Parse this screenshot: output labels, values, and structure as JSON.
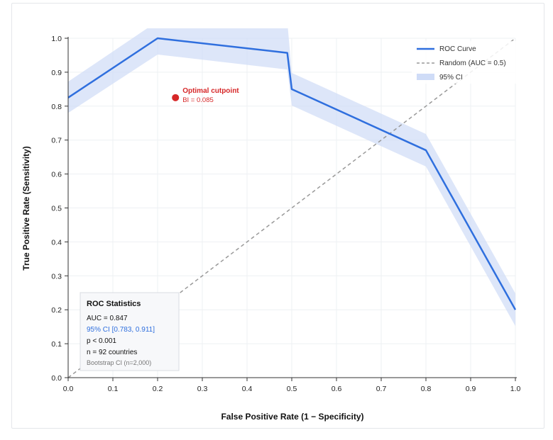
{
  "chart_data": {
    "type": "line",
    "xlabel": "False Positive Rate (1 − Specificity)",
    "ylabel": "True Positive Rate (Sensitivity)",
    "xlim": [
      0,
      1
    ],
    "ylim": [
      0,
      1
    ],
    "xticks": [
      "0.0",
      "0.1",
      "0.2",
      "0.3",
      "0.4",
      "0.5",
      "0.6",
      "0.7",
      "0.8",
      "0.9",
      "1.0"
    ],
    "yticks": [
      "0.0",
      "0.1",
      "0.2",
      "0.3",
      "0.4",
      "0.5",
      "0.6",
      "0.7",
      "0.8",
      "0.9",
      "1.0"
    ],
    "grid": true,
    "legend_position": "top-right",
    "series": [
      {
        "name": "ROC Curve",
        "color": "#2f6fde",
        "x": [
          0.0,
          0.2,
          0.49,
          0.5,
          0.8,
          1.0
        ],
        "y": [
          0.825,
          1.0,
          0.957,
          0.85,
          0.67,
          0.2
        ]
      },
      {
        "name": "Random (AUC = 0.5)",
        "color": "#999999",
        "style": "dashed",
        "x": [
          0.0,
          1.0
        ],
        "y": [
          0.0,
          1.0
        ]
      }
    ],
    "ci_band": {
      "name": "95% CI",
      "color": "#cfdcf7",
      "x": [
        0.0,
        0.2,
        0.49,
        0.5,
        0.8,
        1.0
      ],
      "lower": [
        0.78,
        0.952,
        0.908,
        0.802,
        0.622,
        0.152
      ],
      "upper": [
        0.872,
        1.05,
        1.05,
        0.898,
        0.718,
        0.248
      ]
    },
    "optimal_point": {
      "x": 0.24,
      "y": 0.825,
      "color": "#d62728",
      "label": "Optimal cutpoint",
      "sublabel": "BI = 0.085"
    },
    "stats_box": {
      "title": "ROC Statistics",
      "auc": "AUC = 0.847",
      "ci": "95% CI [0.783, 0.911]",
      "p": "p < 0.001",
      "n": "n = 92 countries",
      "note": "Bootstrap CI (n=2,000)"
    }
  }
}
